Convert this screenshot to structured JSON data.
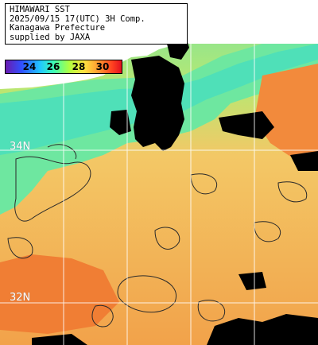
{
  "title_lines": [
    "HIMAWARI SST",
    "2025/09/15 17(UTC) 3H Comp.",
    "Kanagawa Prefecture",
    "supplied by JAXA"
  ],
  "colorbar": {
    "ticks": [
      "24",
      "26",
      "28",
      "30"
    ],
    "colors": [
      "#6a1bb0",
      "#3050ff",
      "#20c8ff",
      "#40ffb0",
      "#b0ff40",
      "#ffe040",
      "#ff9a30",
      "#ff4020",
      "#e01020"
    ]
  },
  "latitude_labels": [
    "34N",
    "32N"
  ],
  "palette": {
    "land": "#000000",
    "cool_coast": "#5ae68a",
    "mid_green": "#9fe86a",
    "warm_orange": "#f6b05a",
    "hot_orange": "#f28a3c",
    "grid": "#ffffff"
  }
}
